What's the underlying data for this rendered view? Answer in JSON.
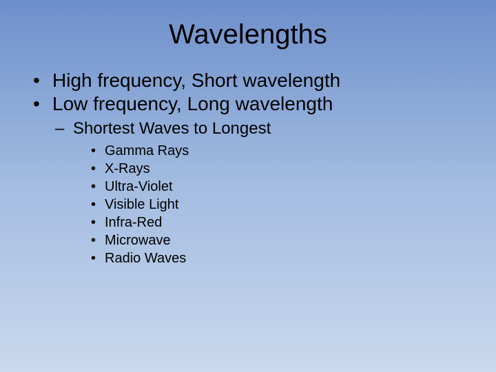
{
  "slide": {
    "title": "Wavelengths",
    "background_gradient": [
      "#6d8fcb",
      "#a3bce0",
      "#c9d9ee"
    ],
    "text_color": "#000000",
    "font_family": "Arial",
    "title_fontsize": 40,
    "level1_fontsize": 28,
    "level2_fontsize": 24,
    "level3_fontsize": 20,
    "bullets_level1_marker": "•",
    "bullets_level2_marker": "–",
    "bullets_level3_marker": "•",
    "level1": [
      "High frequency, Short wavelength",
      "Low frequency, Long wavelength"
    ],
    "level2": [
      "Shortest Waves to Longest"
    ],
    "level3": [
      "Gamma Rays",
      "X-Rays",
      "Ultra-Violet",
      "Visible Light",
      "Infra-Red",
      "Microwave",
      "Radio Waves"
    ]
  }
}
